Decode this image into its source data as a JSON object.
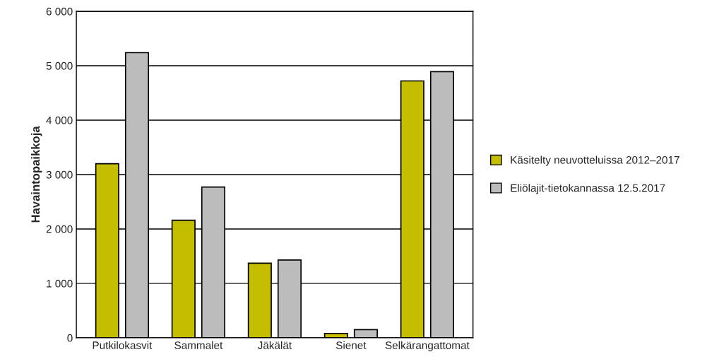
{
  "chart_data": {
    "type": "bar",
    "ylabel": "Havaintopaikkoja",
    "categories": [
      "Putkilokasvit",
      "Sammalet",
      "Jäkälät",
      "Sienet",
      "Selkärangattomat"
    ],
    "series": [
      {
        "name": "Käsitelty neuvotteluissa 2012–2017",
        "color": "#c4bd00",
        "values": [
          3200,
          2160,
          1370,
          80,
          4720
        ]
      },
      {
        "name": "Eliölajit-tietokannassa 12.5.2017",
        "color": "#bcbcbc",
        "values": [
          5240,
          2770,
          1430,
          150,
          4890
        ]
      }
    ],
    "ylim": [
      0,
      6000
    ],
    "yticks": [
      {
        "value": 0,
        "label": "0"
      },
      {
        "value": 1000,
        "label": "1 000"
      },
      {
        "value": 2000,
        "label": "2 000"
      },
      {
        "value": 3000,
        "label": "3 000"
      },
      {
        "value": 4000,
        "label": "4 000"
      },
      {
        "value": 5000,
        "label": "5 000"
      },
      {
        "value": 6000,
        "label": "6 000"
      }
    ],
    "grid": "y",
    "legend": "right"
  }
}
